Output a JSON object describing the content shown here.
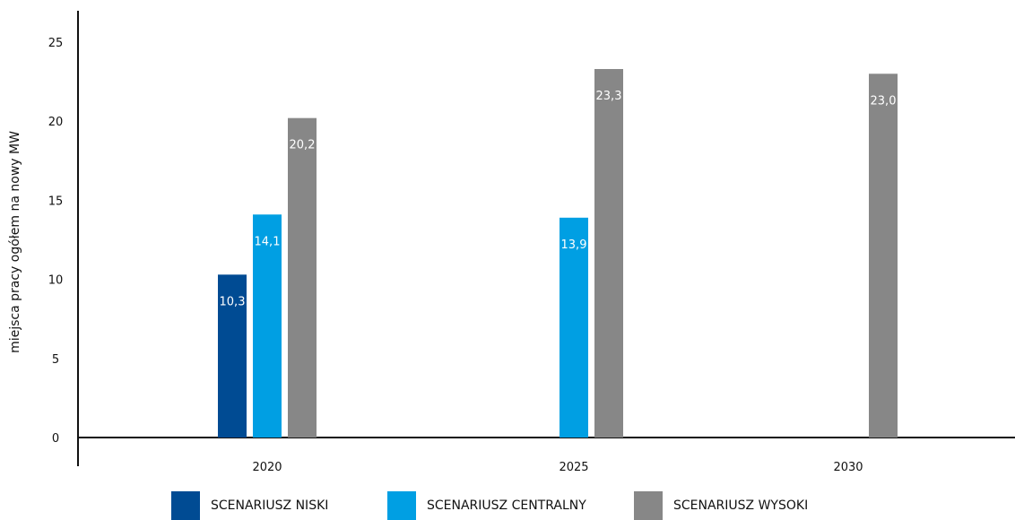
{
  "chart_data": {
    "type": "bar",
    "categories": [
      "2020",
      "2025",
      "2030"
    ],
    "ylabel": "miejsca pracy ogółem na nowy MW",
    "xlabel": "",
    "ylim": [
      0,
      25
    ],
    "yticks": [
      "0",
      "5",
      "10",
      "15",
      "20",
      "25"
    ],
    "grid": false,
    "legend_position": "bottom",
    "series": [
      {
        "name": "SCENARIUSZ NISKI",
        "color": "#004b93",
        "values": [
          10.3,
          null,
          null
        ],
        "labels": [
          "10,3",
          "",
          ""
        ]
      },
      {
        "name": "SCENARIUSZ CENTRALNY",
        "color": "#009fe3",
        "values": [
          14.1,
          13.9,
          null
        ],
        "labels": [
          "14,1",
          "13,9",
          ""
        ]
      },
      {
        "name": "SCENARIUSZ WYSOKI",
        "color": "#878787",
        "values": [
          20.2,
          23.3,
          23.0
        ],
        "labels": [
          "20,2",
          "23,3",
          "23,0"
        ]
      }
    ]
  }
}
